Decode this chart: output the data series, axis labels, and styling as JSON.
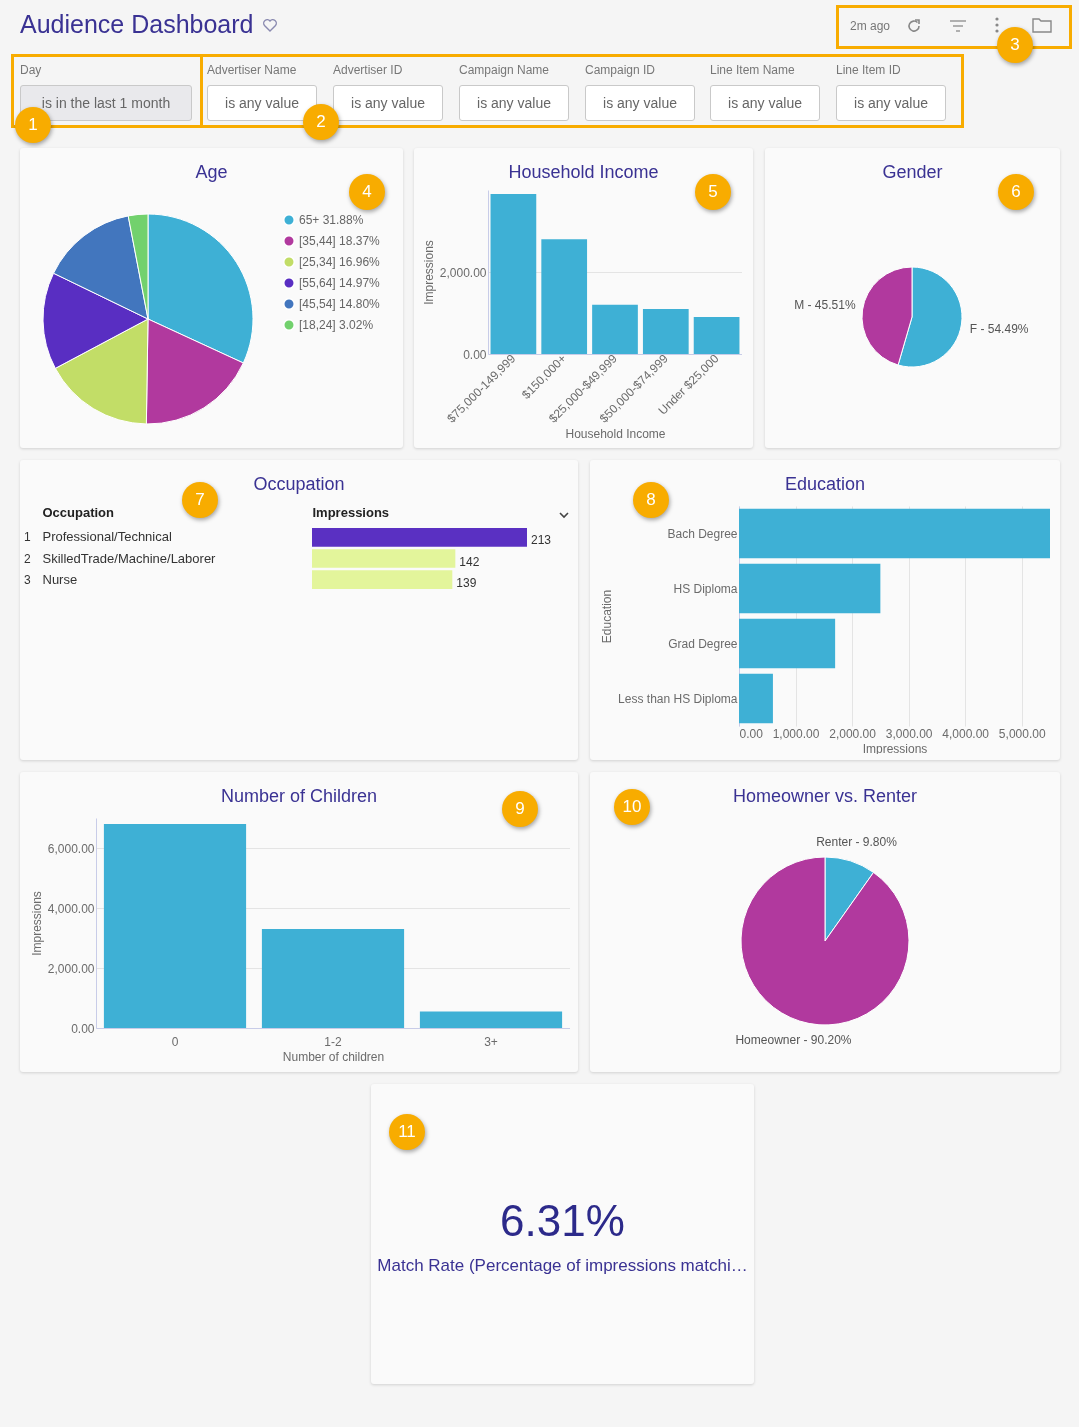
{
  "chart_data": [
    {
      "type": "other",
      "title": "Audience Dashboard",
      "annotations": [
        "Day",
        "is in the last 1 month",
        "Advertiser Name",
        "is any value",
        "Advertiser ID",
        "is any value",
        "Campaign Name",
        "is any value",
        "Campaign ID",
        "is any value",
        "Line Item Name",
        "is any value",
        "Line Item ID",
        "is any value",
        "2m ago",
        "1",
        "2",
        "3"
      ]
    },
    {
      "type": "pie",
      "title": "Age",
      "categories": [
        "65+",
        "[35,44]",
        "[25,34]",
        "[55,64]",
        "[45,54]",
        "[18,24]"
      ],
      "values": [
        31.88,
        18.37,
        16.96,
        14.97,
        14.8,
        3.02
      ],
      "value_labels": [
        "31.88%",
        "18.37%",
        "16.96%",
        "14.97%",
        "14.80%",
        "3.02%"
      ],
      "colors": [
        "#3eb0d5",
        "#b1399e",
        "#c2dd67",
        "#592ec2",
        "#4276be",
        "#72d16d"
      ],
      "legend": "right",
      "annotations": [
        "4"
      ]
    },
    {
      "type": "bar",
      "title": "Household Income",
      "categories": [
        "$75,000-149,999",
        "$150,000+",
        "$25,000-$49,999",
        "$50,000-$74,999",
        "Under $25,000"
      ],
      "values": [
        3900,
        2800,
        1200,
        1100,
        900
      ],
      "color": "#3eb0d5",
      "xlabel": "Household Income",
      "ylabel": "Impressions",
      "ylim": [
        0,
        4000
      ],
      "yticks": [
        {
          "value": 0,
          "label": "0.00"
        },
        {
          "value": 2000,
          "label": "2,000.00"
        }
      ],
      "grid": "y",
      "annotations": [
        "5"
      ]
    },
    {
      "type": "pie",
      "title": "Gender",
      "categories": [
        "F",
        "M"
      ],
      "values": [
        54.49,
        45.51
      ],
      "value_labels": [
        "54.49%",
        "45.51%"
      ],
      "colors": [
        "#3eb0d5",
        "#b1399e"
      ],
      "annotations": [
        "6"
      ]
    },
    {
      "type": "bar",
      "title": "Occupation",
      "orientation": "horizontal",
      "categories": [
        "Professional/Technical",
        "SkilledTrade/Machine/Laborer",
        "Nurse"
      ],
      "values": [
        213,
        142,
        139
      ],
      "colors": [
        "#5a30c2",
        "#e3f59b",
        "#e3f59b"
      ],
      "xlabel": "Impressions",
      "ylabel": "Occupation",
      "data_labels": true,
      "annotations": [
        "1",
        "2",
        "3",
        "7"
      ]
    },
    {
      "type": "bar",
      "title": "Education",
      "orientation": "horizontal",
      "categories": [
        "Bach Degree",
        "HS Diploma",
        "Grad Degree",
        "Less than HS Diploma"
      ],
      "values": [
        5500,
        2500,
        1700,
        600
      ],
      "color": "#3eb0d5",
      "xlabel": "Impressions",
      "ylabel": "Education",
      "xlim": [
        0,
        5500
      ],
      "xticks": [
        {
          "value": 0,
          "label": "0.00"
        },
        {
          "value": 1000,
          "label": "1,000.00"
        },
        {
          "value": 2000,
          "label": "2,000.00"
        },
        {
          "value": 3000,
          "label": "3,000.00"
        },
        {
          "value": 4000,
          "label": "4,000.00"
        },
        {
          "value": 5000,
          "label": "5,000.00"
        }
      ],
      "grid": "x",
      "annotations": [
        "8"
      ]
    },
    {
      "type": "bar",
      "title": "Number of Children",
      "categories": [
        "0",
        "1-2",
        "3+"
      ],
      "values": [
        6800,
        3300,
        550
      ],
      "color": "#3eb0d5",
      "xlabel": "Number of children",
      "ylabel": "Impressions",
      "ylim": [
        0,
        7000
      ],
      "yticks": [
        {
          "value": 0,
          "label": "0.00"
        },
        {
          "value": 2000,
          "label": "2,000.00"
        },
        {
          "value": 4000,
          "label": "4,000.00"
        },
        {
          "value": 6000,
          "label": "6,000.00"
        }
      ],
      "grid": "y",
      "annotations": [
        "9"
      ]
    },
    {
      "type": "pie",
      "title": "Homeowner vs. Renter",
      "categories": [
        "Renter",
        "Homeowner"
      ],
      "values": [
        9.8,
        90.2
      ],
      "value_labels": [
        "9.80%",
        "90.20%"
      ],
      "colors": [
        "#3eb0d5",
        "#b1399e"
      ],
      "annotations": [
        "10"
      ]
    },
    {
      "type": "other",
      "annotations": [
        "6.31%",
        "Match Rate (Percentage of impressions matchi…",
        "11"
      ]
    }
  ]
}
